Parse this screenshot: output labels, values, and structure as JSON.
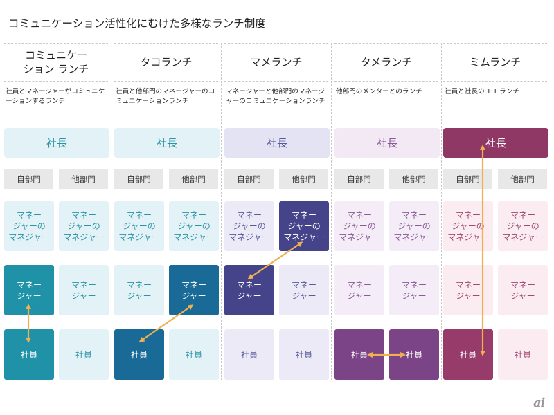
{
  "title": "コミュニケーション活性化にむけた多様なランチ制度",
  "row_labels": {
    "ceo": "社長",
    "own_dept": "自部門",
    "other_dept": "他部門",
    "mgr_of_mgr": "マネー\nジャーの\nマネジャー",
    "manager": "マネー\nジャー",
    "employee": "社員"
  },
  "columns": [
    {
      "title": "コミュニケー\nション ランチ",
      "desc": "社員とマネージャーがコミュニケーションするランチ",
      "ceo_highlight": false,
      "highlight": {
        "mm_own": false,
        "mm_other": false,
        "m_own": true,
        "m_other": false,
        "e_own": true,
        "e_other": false
      },
      "colors": {
        "light_bg": "#e3f2f6",
        "light_text": "#2a93a6",
        "strong_bg": "#1f92a8",
        "strong_text": "#ffffff",
        "ceo_bg": "#e3f2f6",
        "ceo_text": "#2a93a6"
      }
    },
    {
      "title": "タコランチ",
      "desc": "社員と他部門のマネージャーのコミュニケーションランチ",
      "ceo_highlight": false,
      "highlight": {
        "mm_own": false,
        "mm_other": false,
        "m_own": false,
        "m_other": true,
        "e_own": true,
        "e_other": false
      },
      "colors": {
        "light_bg": "#e3f2f6",
        "light_text": "#2a93a6",
        "strong_bg": "#1a6a98",
        "strong_text": "#ffffff",
        "ceo_bg": "#e3f2f6",
        "ceo_text": "#2a93a6"
      }
    },
    {
      "title": "マメランチ",
      "desc": "マネージャーと他部門のマネージャーのコミュニケーションランチ",
      "ceo_highlight": false,
      "highlight": {
        "mm_own": false,
        "mm_other": true,
        "m_own": true,
        "m_other": false,
        "e_own": false,
        "e_other": false
      },
      "colors": {
        "light_bg": "#ebeaf6",
        "light_text": "#5a5a9a",
        "strong_bg": "#454389",
        "strong_text": "#ffffff",
        "ceo_bg": "#e4e3f3",
        "ceo_text": "#5a5a9a"
      }
    },
    {
      "title": "タメランチ",
      "desc": "他部門のメンターとのランチ",
      "ceo_highlight": false,
      "highlight": {
        "mm_own": false,
        "mm_other": false,
        "m_own": false,
        "m_other": false,
        "e_own": true,
        "e_other": true
      },
      "colors": {
        "light_bg": "#f4ecf6",
        "light_text": "#8a5a96",
        "strong_bg": "#7a4486",
        "strong_text": "#ffffff",
        "ceo_bg": "#f3e9f4",
        "ceo_text": "#8a5a96"
      }
    },
    {
      "title": "ミムランチ",
      "desc": "社員と社長の 1:1 ランチ",
      "ceo_highlight": true,
      "highlight": {
        "mm_own": false,
        "mm_other": false,
        "m_own": false,
        "m_other": false,
        "e_own": true,
        "e_other": false
      },
      "colors": {
        "light_bg": "#fbecf2",
        "light_text": "#a04a70",
        "strong_bg": "#963b6a",
        "strong_text": "#ffffff",
        "ceo_bg": "#8f3866",
        "ceo_text": "#ffffff"
      }
    }
  ],
  "arrow_color": "#f0b050",
  "logo_text": "ai"
}
